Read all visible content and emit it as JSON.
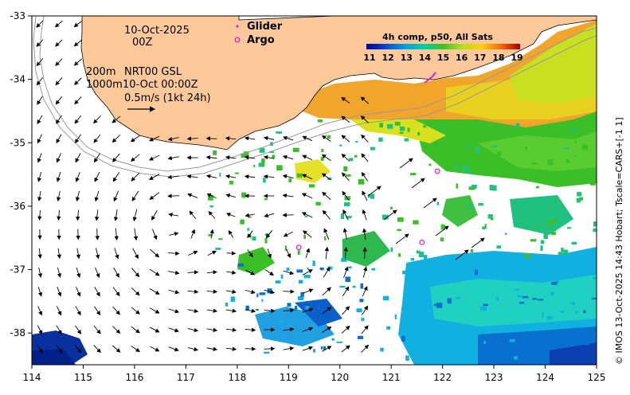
{
  "map": {
    "x_ticks": [
      "114",
      "115",
      "116",
      "117",
      "118",
      "119",
      "120",
      "121",
      "122",
      "123",
      "124",
      "125"
    ],
    "y_ticks": [
      "-33",
      "-34",
      "-35",
      "-36",
      "-37",
      "-38"
    ],
    "lon_range": [
      114,
      125
    ],
    "lat_range": [
      -38.5,
      -33
    ]
  },
  "annotations": {
    "date_line1": "10-Oct-2025",
    "date_line2": "00Z",
    "line_200m": "200m",
    "line_nrt": "NRT00 GSL",
    "line_1000m": "1000m",
    "line_time": "10-Oct 00:00Z",
    "scale_text": "0.5m/s (1kt 24h)"
  },
  "legend": {
    "glider_label": "Glider",
    "argo_label": "Argo",
    "title": "4h comp, p50, All Sats",
    "ticks": [
      "11",
      "12",
      "13",
      "14",
      "15",
      "16",
      "17",
      "18",
      "19"
    ]
  },
  "credit": "© IMOS 13-Oct-2025 14:43 Hobart; Tscale=CARS+[-1 1]",
  "colors": {
    "land": "#fdc99a",
    "arrow": "#000000",
    "marker": "#e020e0",
    "isobath": "#9a9a9a"
  },
  "argo_floats": [
    {
      "lon": 119.2,
      "lat": -36.65
    },
    {
      "lon": 121.6,
      "lat": -36.57
    },
    {
      "lon": 121.9,
      "lat": -35.45
    }
  ]
}
